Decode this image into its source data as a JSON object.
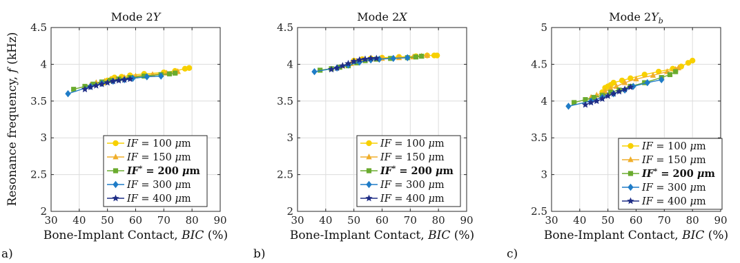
{
  "figure": {
    "ylabel": "Resonance frequency, f (kHz)",
    "xlabel": "Bone-Implant Contact, BIC (%)"
  },
  "colors": {
    "IF100": "#f7d000",
    "IF150": "#f0ae2a",
    "IF200": "#6aab2e",
    "IF300": "#1f7cc7",
    "IF400": "#1f2d86"
  },
  "chart_data": [
    {
      "type": "line",
      "panel_label": "a)",
      "title": "Mode 2Y",
      "xlabel": "Bone-Implant Contact, BIC (%)",
      "ylabel": "Resonance frequency, f (kHz)",
      "xlim": [
        30,
        90
      ],
      "ylim": [
        2,
        4.5
      ],
      "xticks": [
        "30",
        "40",
        "50",
        "60",
        "70",
        "80",
        "90"
      ],
      "yticks": [
        "2",
        "2.5",
        "3",
        "3.5",
        "4",
        "4.5"
      ],
      "grid": true,
      "legend_position": "bottom-right",
      "series": [
        {
          "name": "IF = 100 μm",
          "marker": "circle",
          "color_key": "IF100",
          "x": [
            48.5,
            50,
            51.5,
            52.5,
            55,
            58,
            63,
            70,
            74,
            77.5,
            79
          ],
          "y": [
            3.75,
            3.78,
            3.8,
            3.82,
            3.83,
            3.85,
            3.87,
            3.89,
            3.91,
            3.94,
            3.95
          ]
        },
        {
          "name": "IF = 150 μm",
          "marker": "triangle",
          "color_key": "IF150",
          "x": [
            44,
            46,
            49,
            51,
            53,
            56,
            60,
            66,
            71,
            74,
            75
          ],
          "y": [
            3.72,
            3.75,
            3.77,
            3.79,
            3.8,
            3.82,
            3.84,
            3.86,
            3.88,
            3.89,
            3.9
          ]
        },
        {
          "name": "IF* = 200 μm",
          "marker": "square",
          "color_key": "IF200",
          "x": [
            38,
            42,
            45,
            48,
            51,
            54,
            58,
            63,
            69,
            72,
            74
          ],
          "y": [
            3.66,
            3.7,
            3.73,
            3.76,
            3.78,
            3.8,
            3.82,
            3.84,
            3.86,
            3.87,
            3.88
          ]
        },
        {
          "name": "IF = 300 μm",
          "marker": "diamond",
          "color_key": "IF300",
          "x": [
            36,
            44,
            48,
            52,
            56,
            59,
            64,
            69
          ],
          "y": [
            3.6,
            3.7,
            3.74,
            3.77,
            3.79,
            3.81,
            3.83,
            3.84
          ]
        },
        {
          "name": "IF = 400 μm",
          "marker": "star",
          "color_key": "IF400",
          "x": [
            42,
            44,
            46,
            48,
            50,
            52,
            54,
            56,
            58
          ],
          "y": [
            3.66,
            3.69,
            3.71,
            3.73,
            3.75,
            3.77,
            3.78,
            3.79,
            3.8
          ]
        }
      ]
    },
    {
      "type": "line",
      "panel_label": "b)",
      "title": "Mode 2X",
      "xlabel": "Bone-Implant Contact, BIC (%)",
      "ylabel": "",
      "xlim": [
        30,
        90
      ],
      "ylim": [
        2,
        4.5
      ],
      "xticks": [
        "30",
        "40",
        "50",
        "60",
        "70",
        "80",
        "90"
      ],
      "yticks": [
        "2",
        "2.5",
        "3",
        "3.5",
        "4",
        "4.5"
      ],
      "grid": true,
      "legend_position": "bottom-right",
      "series": [
        {
          "name": "IF = 100 μm",
          "marker": "circle",
          "color_key": "IF100",
          "x": [
            50,
            53,
            56,
            60,
            66,
            72,
            76,
            78.5,
            79.5
          ],
          "y": [
            4.05,
            4.07,
            4.08,
            4.09,
            4.1,
            4.11,
            4.12,
            4.12,
            4.12
          ]
        },
        {
          "name": "IF = 150 μm",
          "marker": "triangle",
          "color_key": "IF150",
          "x": [
            46,
            49,
            51,
            53,
            56,
            60,
            66,
            71,
            74,
            76
          ],
          "y": [
            3.98,
            4.01,
            4.04,
            4.06,
            4.07,
            4.08,
            4.09,
            4.1,
            4.11,
            4.12
          ]
        },
        {
          "name": "IF* = 200 μm",
          "marker": "square",
          "color_key": "IF200",
          "x": [
            38,
            42,
            45,
            48,
            51,
            54,
            58,
            63,
            69,
            72,
            74
          ],
          "y": [
            3.92,
            3.94,
            3.96,
            3.98,
            4.02,
            4.05,
            4.07,
            4.08,
            4.09,
            4.1,
            4.11
          ]
        },
        {
          "name": "IF = 300 μm",
          "marker": "diamond",
          "color_key": "IF300",
          "x": [
            36,
            44,
            48,
            52,
            56,
            59,
            64,
            69
          ],
          "y": [
            3.9,
            3.95,
            3.99,
            4.03,
            4.06,
            4.07,
            4.08,
            4.09
          ]
        },
        {
          "name": "IF = 400 μm",
          "marker": "star",
          "color_key": "IF400",
          "x": [
            42,
            44,
            46,
            48,
            50,
            52,
            54,
            56,
            58
          ],
          "y": [
            3.93,
            3.95,
            3.98,
            4.01,
            4.04,
            4.06,
            4.07,
            4.08,
            4.08
          ]
        }
      ]
    },
    {
      "type": "line",
      "panel_label": "c)",
      "title": "Mode 2Yb",
      "xlabel": "Bone-Implant Contact, BIC (%)",
      "ylabel": "",
      "xlim": [
        30,
        90
      ],
      "ylim": [
        2.5,
        5
      ],
      "xticks": [
        "30",
        "40",
        "50",
        "60",
        "70",
        "80",
        "90"
      ],
      "yticks": [
        "2.5",
        "3",
        "3.5",
        "4",
        "4.5",
        "5"
      ],
      "grid": true,
      "legend_position": "bottom-right",
      "series": [
        {
          "name": "IF = 100 μm",
          "marker": "circle",
          "color_key": "IF100",
          "x": [
            48,
            49,
            50,
            51,
            52,
            55,
            58,
            63,
            68,
            73,
            76,
            78.5,
            80
          ],
          "y": [
            4.12,
            4.18,
            4.2,
            4.22,
            4.25,
            4.28,
            4.31,
            4.36,
            4.4,
            4.44,
            4.47,
            4.52,
            4.55
          ]
        },
        {
          "name": "IF = 150 μm",
          "marker": "triangle",
          "color_key": "IF150",
          "x": [
            44,
            46,
            49,
            51,
            53,
            56,
            60,
            66,
            71,
            74,
            75
          ],
          "y": [
            4.05,
            4.08,
            4.13,
            4.17,
            4.2,
            4.25,
            4.3,
            4.35,
            4.4,
            4.43,
            4.45
          ]
        },
        {
          "name": "IF* = 200 μm",
          "marker": "square",
          "color_key": "IF200",
          "x": [
            38,
            42,
            45,
            48,
            51,
            54,
            58,
            63,
            69,
            72,
            74
          ],
          "y": [
            3.98,
            4.02,
            4.05,
            4.08,
            4.12,
            4.15,
            4.2,
            4.25,
            4.32,
            4.36,
            4.4
          ]
        },
        {
          "name": "IF = 300 μm",
          "marker": "diamond",
          "color_key": "IF300",
          "x": [
            36,
            44,
            48,
            52,
            56,
            59,
            64,
            69
          ],
          "y": [
            3.93,
            4.0,
            4.05,
            4.1,
            4.15,
            4.2,
            4.25,
            4.29
          ]
        },
        {
          "name": "IF = 400 μm",
          "marker": "star",
          "color_key": "IF400",
          "x": [
            42,
            44,
            46,
            48,
            50,
            52,
            54,
            56,
            58
          ],
          "y": [
            3.95,
            3.98,
            4.0,
            4.03,
            4.07,
            4.1,
            4.13,
            4.16,
            4.19
          ]
        }
      ]
    }
  ]
}
